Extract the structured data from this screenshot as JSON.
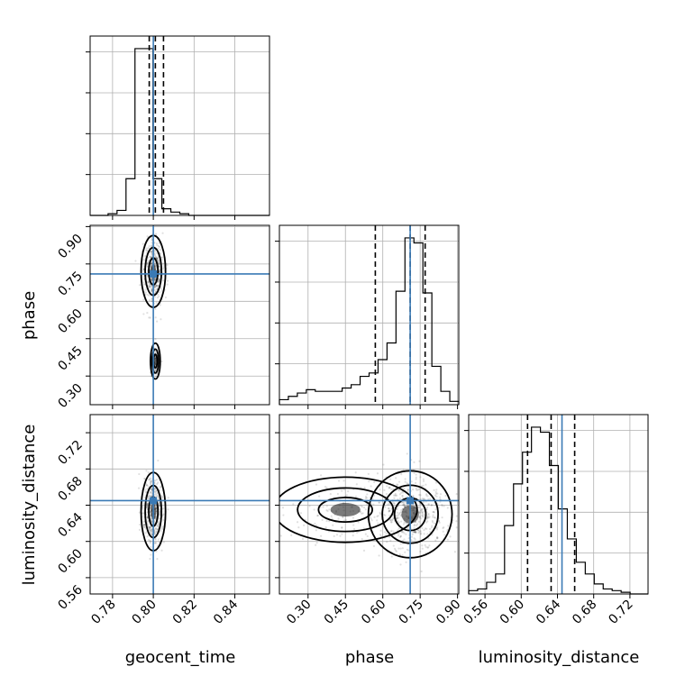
{
  "chart_data": {
    "type": "corner",
    "parameters": [
      {
        "id": "geocent_time",
        "label": "geocent_time",
        "range": [
          0.769,
          0.857
        ],
        "ticks": [
          "0.78",
          "0.80",
          "0.82",
          "0.84"
        ],
        "truth": 0.8,
        "quantiles": [
          0.798,
          0.801,
          0.805
        ]
      },
      {
        "id": "phase",
        "label": "phase",
        "range": [
          0.185,
          0.905
        ],
        "ticks": [
          "0.30",
          "0.45",
          "0.60",
          "0.75",
          "0.90"
        ],
        "truth": 0.71,
        "quantiles": [
          0.57,
          0.71,
          0.77
        ]
      },
      {
        "id": "luminosity_distance",
        "label": "luminosity_distance",
        "range": [
          0.542,
          0.74
        ],
        "ticks": [
          "0.56",
          "0.60",
          "0.64",
          "0.68",
          "0.72"
        ],
        "truth": 0.645,
        "quantiles": [
          0.607,
          0.633,
          0.659
        ]
      }
    ],
    "histograms": {
      "geocent_time": {
        "edges": [
          0.769,
          0.7734,
          0.7778,
          0.7822,
          0.7866,
          0.791,
          0.7954,
          0.7998,
          0.8042,
          0.8086,
          0.813,
          0.8174,
          0.8218,
          0.8262,
          0.8306,
          0.835,
          0.8394,
          0.8438,
          0.8482,
          0.8526,
          0.857
        ],
        "counts": [
          0,
          0,
          0.01,
          0.03,
          0.22,
          1.0,
          1.0,
          0.22,
          0.04,
          0.02,
          0.01,
          0,
          0,
          0,
          0,
          0,
          0,
          0,
          0,
          0
        ]
      },
      "phase": {
        "edges": [
          0.185,
          0.221,
          0.257,
          0.293,
          0.329,
          0.365,
          0.401,
          0.437,
          0.473,
          0.509,
          0.545,
          0.581,
          0.617,
          0.653,
          0.689,
          0.725,
          0.761,
          0.797,
          0.833,
          0.869,
          0.905
        ],
        "counts": [
          0.03,
          0.05,
          0.07,
          0.09,
          0.08,
          0.08,
          0.08,
          0.1,
          0.12,
          0.17,
          0.19,
          0.27,
          0.37,
          0.68,
          1.0,
          0.97,
          0.67,
          0.23,
          0.08,
          0.02
        ]
      },
      "luminosity_distance": {
        "edges": [
          0.542,
          0.5519,
          0.5618,
          0.5717,
          0.5816,
          0.5915,
          0.6014,
          0.6113,
          0.6212,
          0.6311,
          0.641,
          0.6509,
          0.6608,
          0.6707,
          0.6806,
          0.6905,
          0.7004,
          0.7103,
          0.7202,
          0.7301,
          0.74
        ],
        "counts": [
          0.02,
          0.03,
          0.07,
          0.12,
          0.41,
          0.66,
          0.85,
          1.0,
          0.97,
          0.77,
          0.51,
          0.33,
          0.19,
          0.12,
          0.06,
          0.03,
          0.02,
          0.01,
          0,
          0
        ]
      }
    },
    "pairs": [
      {
        "x": "geocent_time",
        "y": "phase",
        "centers": [
          [
            0.8,
            0.72
          ],
          [
            0.801,
            0.36
          ]
        ],
        "spread": [
          [
            0.0025,
            0.06
          ],
          [
            0.001,
            0.03
          ]
        ]
      },
      {
        "x": "geocent_time",
        "y": "luminosity_distance",
        "centers": [
          [
            0.8,
            0.633
          ]
        ],
        "spread": [
          [
            0.0025,
            0.018
          ]
        ]
      },
      {
        "x": "phase",
        "y": "luminosity_distance",
        "centers": [
          [
            0.71,
            0.63
          ],
          [
            0.45,
            0.635
          ]
        ],
        "spread": [
          [
            0.07,
            0.02
          ],
          [
            0.12,
            0.015
          ]
        ]
      }
    ],
    "grid": true
  }
}
